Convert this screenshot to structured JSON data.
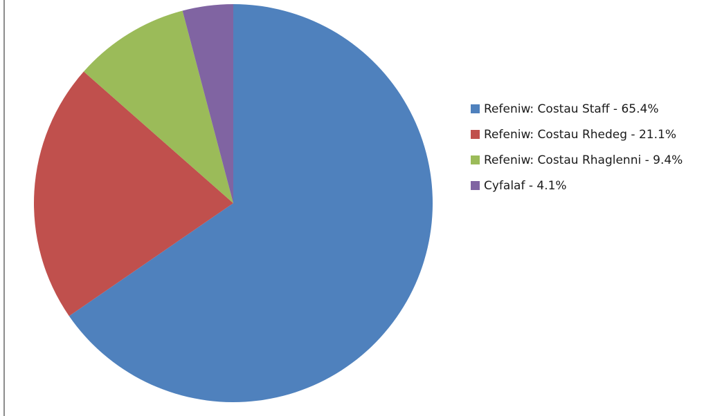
{
  "chart_data": {
    "type": "pie",
    "title": "",
    "categories": [
      "Refeniw: Costau Staff - 65.4%",
      "Refeniw: Costau Rhedeg - 21.1%",
      "Refeniw: Costau Rhaglenni - 9.4%",
      "Cyfalaf - 4.1%"
    ],
    "values": [
      65.4,
      21.1,
      9.4,
      4.1
    ],
    "colors": [
      "#4f81bd",
      "#c0504d",
      "#9bbb59",
      "#8064a2"
    ],
    "legend_position": "right",
    "start_angle": "top",
    "direction": "clockwise"
  }
}
